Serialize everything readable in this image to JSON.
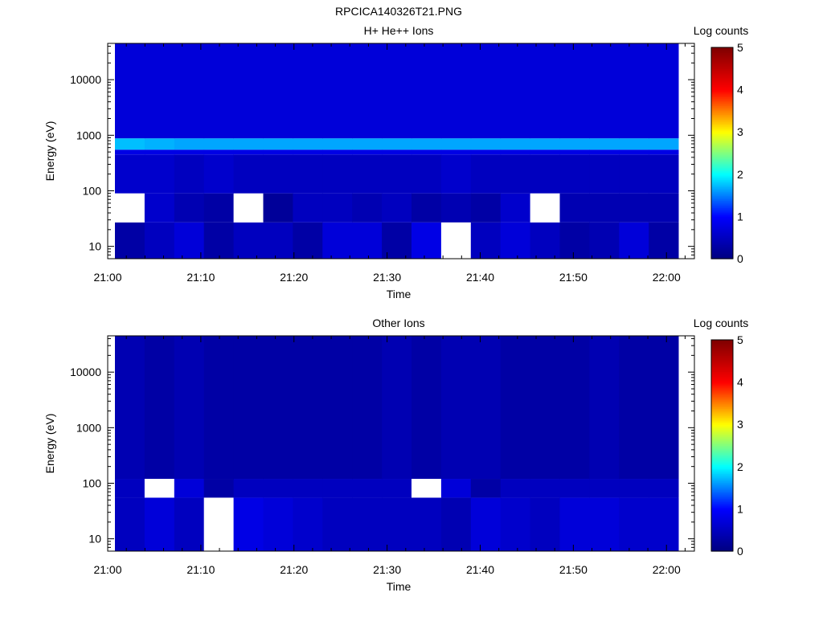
{
  "figure_title": "RPCICA140326T21.PNG",
  "panels": [
    {
      "title": "H+ He++ Ions",
      "xlabel": "Time",
      "ylabel": "Energy (eV)",
      "colorbar_label": "Log counts",
      "colorbar_ticks": [
        "0",
        "1",
        "2",
        "3",
        "4",
        "5"
      ],
      "y_ticks": [
        "10",
        "100",
        "1000",
        "10000"
      ],
      "x_ticks": [
        "21:00",
        "21:10",
        "21:20",
        "21:30",
        "21:40",
        "21:50",
        "22:00"
      ]
    },
    {
      "title": "Other Ions",
      "xlabel": "Time",
      "ylabel": "Energy (eV)",
      "colorbar_label": "Log counts",
      "colorbar_ticks": [
        "0",
        "1",
        "2",
        "3",
        "4",
        "5"
      ],
      "y_ticks": [
        "10",
        "100",
        "1000",
        "10000"
      ],
      "x_ticks": [
        "21:00",
        "21:10",
        "21:20",
        "21:30",
        "21:40",
        "21:50",
        "22:00"
      ]
    }
  ],
  "colors": {
    "colormap": [
      "#00007f",
      "#0000ff",
      "#00ffff",
      "#ffff00",
      "#ff0000",
      "#7f0000"
    ],
    "empty_bin": "#ffffff"
  },
  "chart_data": [
    {
      "type": "heatmap",
      "title": "H+ He++ Ions",
      "xlabel": "Time",
      "ylabel": "Energy (eV)",
      "y_scale": "log",
      "ylim": [
        6,
        45000
      ],
      "xlim": [
        "21:00",
        "22:03"
      ],
      "zlabel": "Log counts",
      "zlim": [
        0,
        5
      ],
      "time_bins": [
        "21:01",
        "21:04",
        "21:08",
        "21:11",
        "21:14",
        "21:17",
        "21:20",
        "21:24",
        "21:27",
        "21:30",
        "21:33",
        "21:37",
        "21:40",
        "21:43",
        "21:46",
        "21:50",
        "21:53",
        "21:56",
        "22:00"
      ],
      "energy_bands": [
        {
          "range": [
            6,
            27
          ],
          "log_counts": [
            0.3,
            0.5,
            0.7,
            0.3,
            0.5,
            0.5,
            0.3,
            0.7,
            0.7,
            0.3,
            0.8,
            null,
            0.5,
            0.7,
            0.5,
            0.3,
            0.4,
            0.7,
            0.3
          ]
        },
        {
          "range": [
            27,
            90
          ],
          "log_counts": [
            null,
            0.6,
            0.4,
            0.3,
            null,
            0.2,
            0.5,
            0.5,
            0.4,
            0.5,
            0.3,
            0.4,
            0.3,
            0.6,
            null,
            0.4,
            0.4,
            0.4,
            0.4
          ]
        },
        {
          "range": [
            90,
            450
          ],
          "log_counts": [
            0.6,
            0.6,
            0.5,
            0.6,
            0.5,
            0.5,
            0.5,
            0.5,
            0.5,
            0.5,
            0.5,
            0.6,
            0.5,
            0.5,
            0.5,
            0.5,
            0.5,
            0.5,
            0.5
          ]
        },
        {
          "range": [
            450,
            550
          ],
          "log_counts": [
            0.8,
            0.8,
            0.8,
            0.8,
            0.8,
            0.8,
            0.8,
            0.8,
            0.8,
            0.8,
            0.8,
            0.8,
            0.8,
            0.8,
            0.8,
            0.8,
            0.8,
            0.8,
            0.8
          ]
        },
        {
          "range": [
            550,
            880
          ],
          "log_counts": [
            1.75,
            1.7,
            1.65,
            1.65,
            1.65,
            1.65,
            1.65,
            1.65,
            1.65,
            1.65,
            1.65,
            1.65,
            1.65,
            1.65,
            1.65,
            1.65,
            1.65,
            1.65,
            1.65
          ]
        },
        {
          "range": [
            880,
            45000
          ],
          "log_counts": [
            0.7,
            0.7,
            0.7,
            0.7,
            0.7,
            0.7,
            0.7,
            0.7,
            0.7,
            0.7,
            0.7,
            0.7,
            0.7,
            0.7,
            0.7,
            0.7,
            0.7,
            0.7,
            0.7
          ]
        }
      ]
    },
    {
      "type": "heatmap",
      "title": "Other Ions",
      "xlabel": "Time",
      "ylabel": "Energy (eV)",
      "y_scale": "log",
      "ylim": [
        6,
        45000
      ],
      "xlim": [
        "21:00",
        "22:03"
      ],
      "zlabel": "Log counts",
      "zlim": [
        0,
        5
      ],
      "time_bins": [
        "21:01",
        "21:04",
        "21:08",
        "21:11",
        "21:14",
        "21:17",
        "21:20",
        "21:24",
        "21:27",
        "21:30",
        "21:33",
        "21:37",
        "21:40",
        "21:43",
        "21:46",
        "21:50",
        "21:53",
        "21:56",
        "22:00"
      ],
      "energy_bands": [
        {
          "range": [
            6,
            55
          ],
          "log_counts": [
            0.5,
            0.7,
            0.5,
            null,
            0.8,
            0.7,
            0.6,
            0.5,
            0.5,
            0.5,
            0.5,
            0.4,
            0.7,
            0.6,
            0.5,
            0.7,
            0.7,
            0.6,
            0.6
          ]
        },
        {
          "range": [
            55,
            120
          ],
          "log_counts": [
            0.5,
            null,
            0.7,
            0.3,
            0.5,
            0.5,
            0.5,
            0.5,
            0.5,
            0.5,
            null,
            0.7,
            0.3,
            0.5,
            0.5,
            0.5,
            0.5,
            0.5,
            0.5
          ]
        },
        {
          "range": [
            120,
            45000
          ],
          "log_counts": [
            0.4,
            0.3,
            0.4,
            0.3,
            0.3,
            0.3,
            0.3,
            0.3,
            0.3,
            0.4,
            0.3,
            0.4,
            0.4,
            0.3,
            0.3,
            0.3,
            0.4,
            0.3,
            0.3
          ]
        }
      ]
    }
  ]
}
